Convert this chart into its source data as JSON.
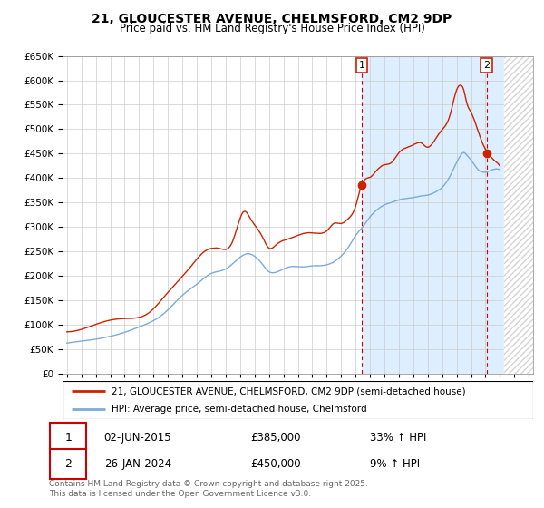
{
  "title": "21, GLOUCESTER AVENUE, CHELMSFORD, CM2 9DP",
  "subtitle": "Price paid vs. HM Land Registry's House Price Index (HPI)",
  "ylim": [
    0,
    650000
  ],
  "yticks": [
    0,
    50000,
    100000,
    150000,
    200000,
    250000,
    300000,
    350000,
    400000,
    450000,
    500000,
    550000,
    600000,
    650000
  ],
  "ytick_labels": [
    "£0",
    "£50K",
    "£100K",
    "£150K",
    "£200K",
    "£250K",
    "£300K",
    "£350K",
    "£400K",
    "£450K",
    "£500K",
    "£550K",
    "£600K",
    "£650K"
  ],
  "xlim_start": 1994.7,
  "xlim_end": 2027.3,
  "hatch_start": 2025.3,
  "highlight_start": 2015.42,
  "highlight_color": "#ddeeff",
  "plot_bg_color": "#ffffff",
  "grid_color": "#cccccc",
  "marker1_x": 2015.42,
  "marker1_y": 385000,
  "marker2_x": 2024.07,
  "marker2_y": 450000,
  "dashed_line_color": "#cc0000",
  "red_line_color": "#cc2200",
  "blue_line_color": "#7aabda",
  "legend_red_label": "21, GLOUCESTER AVENUE, CHELMSFORD, CM2 9DP (semi-detached house)",
  "legend_blue_label": "HPI: Average price, semi-detached house, Chelmsford",
  "annotation1_date": "02-JUN-2015",
  "annotation1_price": "£385,000",
  "annotation1_pct": "33% ↑ HPI",
  "annotation2_date": "26-JAN-2024",
  "annotation2_price": "£450,000",
  "annotation2_pct": "9% ↑ HPI",
  "footer": "Contains HM Land Registry data © Crown copyright and database right 2025.\nThis data is licensed under the Open Government Licence v3.0."
}
